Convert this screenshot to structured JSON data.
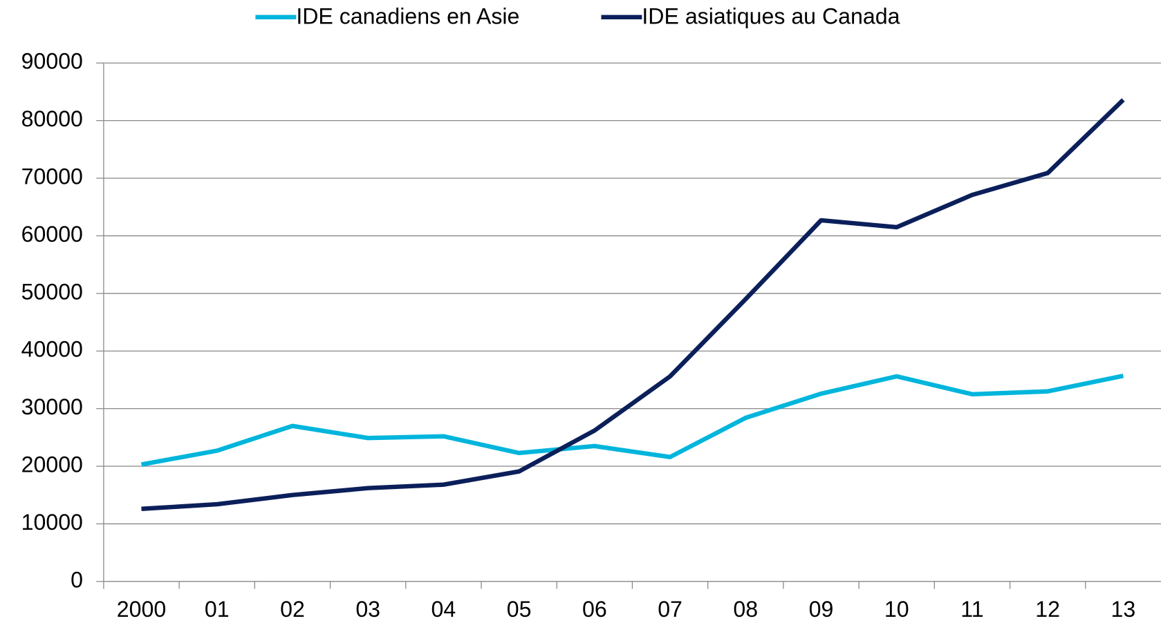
{
  "chart_data": {
    "type": "line",
    "categories": [
      "2000",
      "01",
      "02",
      "03",
      "04",
      "05",
      "06",
      "07",
      "08",
      "09",
      "10",
      "11",
      "12",
      "13"
    ],
    "series": [
      {
        "name": "IDE canadiens en Asie",
        "color": "#00b5dc",
        "values": [
          20300,
          22700,
          27000,
          24900,
          25200,
          22300,
          23500,
          21600,
          28400,
          32600,
          35600,
          32500,
          33000,
          35700
        ]
      },
      {
        "name": "IDE asiatiques au Canada",
        "color": "#0b1f5a",
        "values": [
          12600,
          13400,
          15000,
          16200,
          16800,
          19100,
          26200,
          35600,
          49000,
          62700,
          61500,
          67100,
          70900,
          83600
        ]
      }
    ],
    "ylim": [
      0,
      90000
    ],
    "yticks": [
      0,
      10000,
      20000,
      30000,
      40000,
      50000,
      60000,
      70000,
      80000,
      90000
    ],
    "grid": true,
    "legend": "top"
  }
}
